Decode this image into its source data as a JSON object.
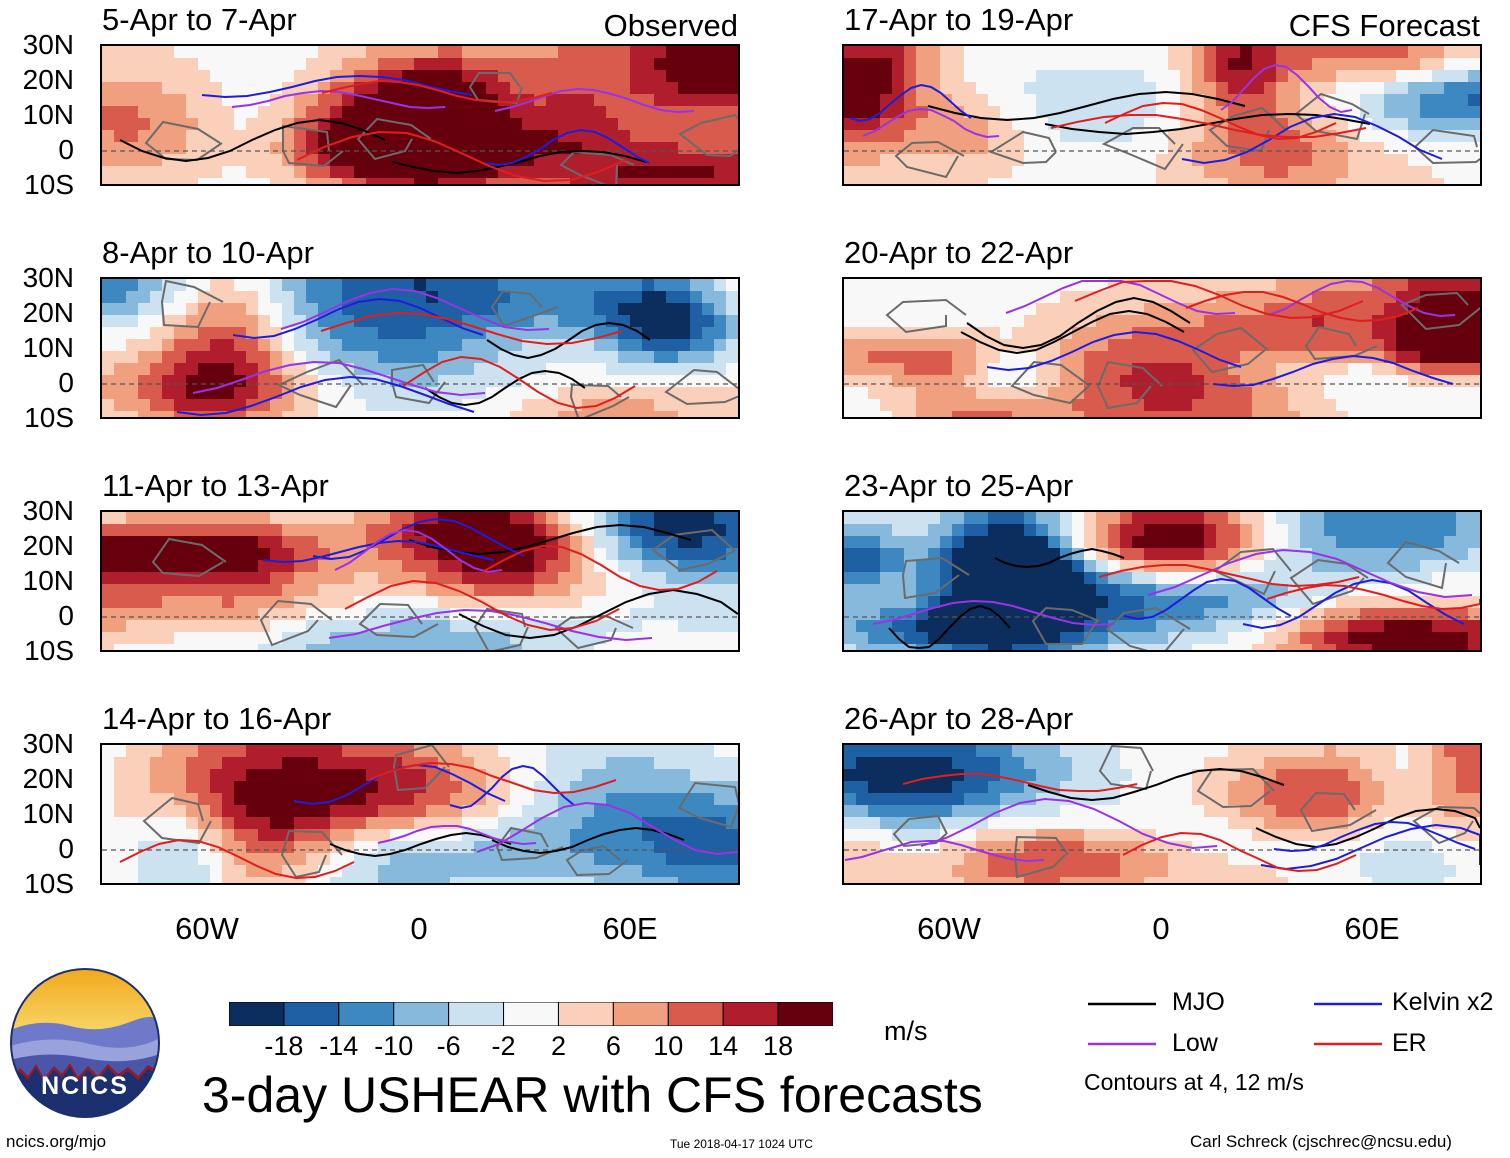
{
  "header": {
    "observed_label": "Observed",
    "forecast_label": "CFS Forecast"
  },
  "latitudes": [
    "30N",
    "20N",
    "10N",
    "0",
    "10S"
  ],
  "longitudes": [
    "60W",
    "0",
    "60E"
  ],
  "panels": [
    {
      "title": "5-Apr to 7-Apr"
    },
    {
      "title": "8-Apr to 10-Apr"
    },
    {
      "title": "11-Apr to 13-Apr"
    },
    {
      "title": "14-Apr to 16-Apr"
    },
    {
      "title": "17-Apr to 19-Apr"
    },
    {
      "title": "20-Apr to 22-Apr"
    },
    {
      "title": "23-Apr to 25-Apr"
    },
    {
      "title": "26-Apr to 28-Apr"
    }
  ],
  "colorbar": {
    "labels": [
      "-18",
      "-14",
      "-10",
      "-6",
      "-2",
      "2",
      "6",
      "10",
      "14",
      "18"
    ],
    "colors": [
      "#0b2e5e",
      "#1f5fa3",
      "#3e88c2",
      "#86b9dc",
      "#cde2f0",
      "#f8f8f8",
      "#fbd0bb",
      "#f09f7f",
      "#d85b4e",
      "#b01e2e",
      "#67000d"
    ],
    "units": "m/s"
  },
  "legend": {
    "items": [
      {
        "label": "MJO",
        "color": "#000000"
      },
      {
        "label": "Kelvin x2",
        "color": "#1d1de0"
      },
      {
        "label": "Low",
        "color": "#9933e6"
      },
      {
        "label": "ER",
        "color": "#e01e1e"
      }
    ],
    "note": "Contours at 4, 12 m/s"
  },
  "chart_data": {
    "type": "heatmap",
    "title": "3-day USHEAR with CFS forecasts",
    "variable": "USHEAR",
    "units": "m/s",
    "lat_range": [
      "10S",
      "30N"
    ],
    "lon_ticks": [
      "60W",
      "0",
      "60E"
    ],
    "contour_levels_ms": [
      4,
      12
    ],
    "observed_periods": [
      "5-Apr to 7-Apr",
      "8-Apr to 10-Apr",
      "11-Apr to 13-Apr",
      "14-Apr to 16-Apr"
    ],
    "forecast_periods": [
      "17-Apr to 19-Apr",
      "20-Apr to 22-Apr",
      "23-Apr to 25-Apr",
      "26-Apr to 28-Apr"
    ],
    "colorbar_levels": [
      -18,
      -14,
      -10,
      -6,
      -2,
      2,
      6,
      10,
      14,
      18
    ]
  },
  "footer": {
    "website": "ncics.org/mjo",
    "timestamp": "Tue 2018-04-17 1024 UTC",
    "author": "Carl Schreck (cjschrec@ncsu.edu)",
    "logo_text": "NCICS"
  }
}
